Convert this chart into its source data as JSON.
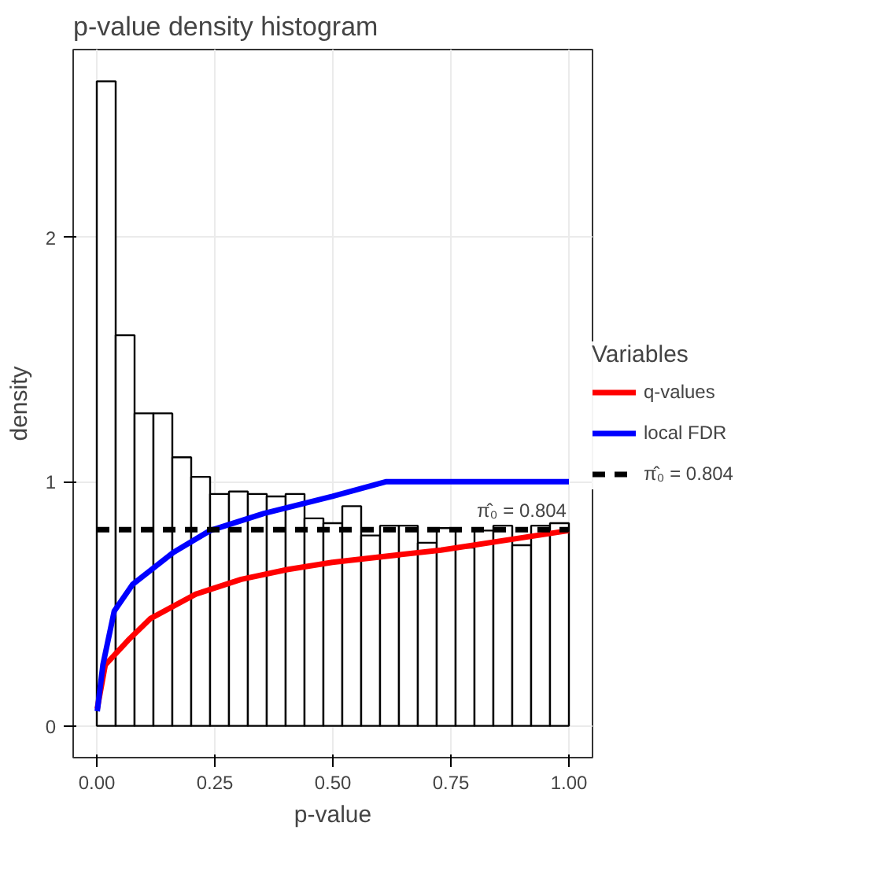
{
  "chart_data": {
    "type": "histogram",
    "title": "p-value density histogram",
    "xlabel": "p-value",
    "ylabel": "density",
    "legend_title": "Variables",
    "color": "#ffffff",
    "bins": [
      0,
      0.04,
      0.08,
      0.12,
      0.16,
      0.2,
      0.24,
      0.28,
      0.32,
      0.36,
      0.4,
      0.44,
      0.48,
      0.52,
      0.56,
      0.6,
      0.64,
      0.68,
      0.72,
      0.76,
      0.8,
      0.84,
      0.88,
      0.92,
      0.96,
      1.0
    ],
    "values": [
      2.64,
      1.6,
      1.28,
      1.28,
      1.1,
      1.02,
      0.95,
      0.96,
      0.95,
      0.94,
      0.95,
      0.85,
      0.83,
      0.9,
      0.78,
      0.82,
      0.82,
      0.75,
      0.81,
      0.73,
      0.8,
      0.82,
      0.74,
      0.82,
      0.83
    ],
    "series": [
      {
        "name": "q-values",
        "type": "line",
        "color": "#ff0000",
        "x": [
          0.001,
          0.018,
          0.066,
          0.114,
          0.21,
          0.306,
          0.403,
          0.499,
          0.729,
          1.0
        ],
        "values": [
          0.07,
          0.25,
          0.35,
          0.44,
          0.54,
          0.6,
          0.64,
          0.67,
          0.72,
          0.8
        ]
      },
      {
        "name": "local FDR",
        "type": "line",
        "color": "#0000ff",
        "x": [
          0.001,
          0.013,
          0.037,
          0.076,
          0.162,
          0.24,
          0.354,
          0.499,
          0.612,
          1.0
        ],
        "values": [
          0.06,
          0.25,
          0.47,
          0.58,
          0.71,
          0.8,
          0.87,
          0.94,
          1.0,
          1.0
        ]
      },
      {
        "name": "π̂₀ = 0.804",
        "type": "line",
        "color": "#000000",
        "line_style": "dashed",
        "x": [
          0,
          1
        ],
        "values": [
          0.804,
          0.804
        ]
      }
    ],
    "annotations": [
      {
        "text": "π̂₀ = 0.804",
        "x": 0.9,
        "y": 0.804
      }
    ],
    "xlim": [
      -0.05,
      1.05
    ],
    "ylim": [
      -0.13,
      2.77
    ],
    "xticks": [
      {
        "value": 0,
        "label": "0.00"
      },
      {
        "value": 0.25,
        "label": "0.25"
      },
      {
        "value": 0.5,
        "label": "0.50"
      },
      {
        "value": 0.75,
        "label": "0.75"
      },
      {
        "value": 1,
        "label": "1.00"
      }
    ],
    "yticks": [
      0,
      1,
      2
    ],
    "grid": true,
    "legend": "right"
  }
}
